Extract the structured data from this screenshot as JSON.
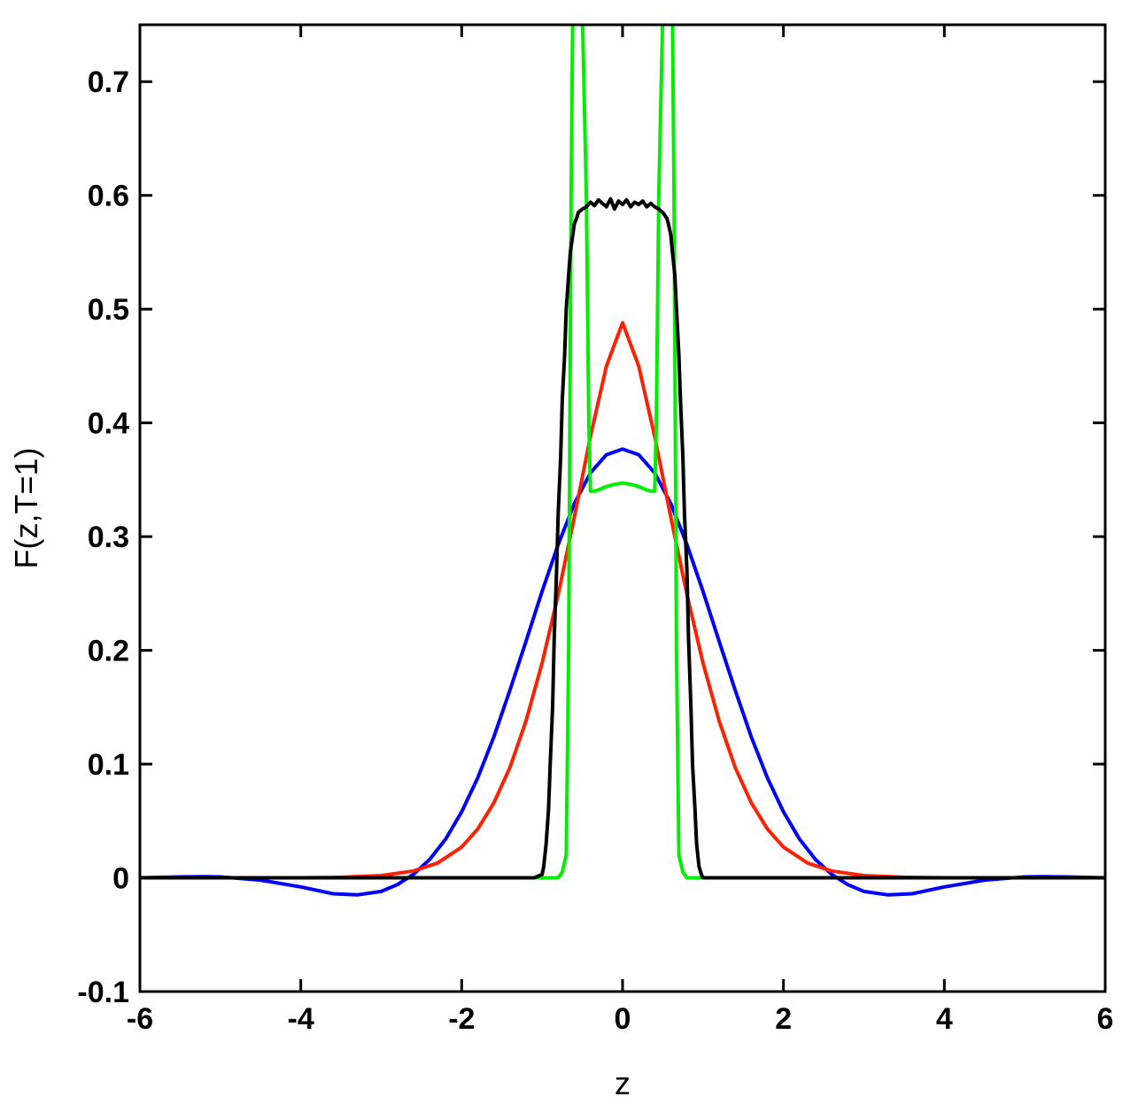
{
  "chart_data": {
    "type": "line",
    "title": "",
    "xlabel": "z",
    "ylabel": "F(z,T=1)",
    "xlim": [
      -6,
      6
    ],
    "ylim": [
      -0.1,
      0.75
    ],
    "xticks": [
      -6,
      -4,
      -2,
      0,
      2,
      4,
      6
    ],
    "xtick_labels": [
      "-6",
      "-4",
      "-2",
      "0",
      "2",
      "4",
      "6"
    ],
    "yticks": [
      -0.1,
      0,
      0.1,
      0.2,
      0.3,
      0.4,
      0.5,
      0.6,
      0.7
    ],
    "ytick_labels": [
      "-0.1",
      "0",
      "0.1",
      "0.2",
      "0.3",
      "0.4",
      "0.5",
      "0.6",
      "0.7"
    ],
    "grid": false,
    "legend": "none",
    "series": [
      {
        "color": "#0000ff",
        "x": [
          -6,
          -5.5,
          -5.2,
          -5,
          -4.5,
          -4,
          -3.6,
          -3.3,
          -3.0,
          -2.8,
          -2.6,
          -2.4,
          -2.2,
          -2.0,
          -1.8,
          -1.6,
          -1.4,
          -1.2,
          -1.0,
          -0.8,
          -0.6,
          -0.4,
          -0.2,
          0,
          0.2,
          0.4,
          0.6,
          0.8,
          1.0,
          1.2,
          1.4,
          1.6,
          1.8,
          2.0,
          2.2,
          2.4,
          2.6,
          2.8,
          3.0,
          3.3,
          3.6,
          4.0,
          4.5,
          5.0,
          5.2,
          5.5,
          6
        ],
        "y": [
          0.0,
          0.0008,
          0.001,
          0.0008,
          -0.002,
          -0.008,
          -0.014,
          -0.015,
          -0.012,
          -0.006,
          0.003,
          0.016,
          0.034,
          0.058,
          0.088,
          0.124,
          0.165,
          0.208,
          0.252,
          0.293,
          0.329,
          0.356,
          0.372,
          0.377,
          0.372,
          0.356,
          0.329,
          0.293,
          0.252,
          0.208,
          0.165,
          0.124,
          0.088,
          0.058,
          0.034,
          0.016,
          0.003,
          -0.006,
          -0.012,
          -0.015,
          -0.014,
          -0.008,
          -0.002,
          0.0008,
          0.001,
          0.0008,
          0.0
        ]
      },
      {
        "color": "#ff2000",
        "x": [
          -6,
          -4,
          -3.5,
          -3.0,
          -2.6,
          -2.3,
          -2.0,
          -1.8,
          -1.6,
          -1.4,
          -1.2,
          -1.0,
          -0.8,
          -0.6,
          -0.4,
          -0.2,
          0,
          0.2,
          0.4,
          0.6,
          0.8,
          1.0,
          1.2,
          1.4,
          1.6,
          1.8,
          2.0,
          2.3,
          2.6,
          3.0,
          3.5,
          4,
          6
        ],
        "y": [
          0.0,
          0.0,
          0.0005,
          0.002,
          0.006,
          0.013,
          0.027,
          0.043,
          0.066,
          0.097,
          0.138,
          0.189,
          0.249,
          0.317,
          0.388,
          0.45,
          0.488,
          0.45,
          0.388,
          0.317,
          0.249,
          0.189,
          0.138,
          0.097,
          0.066,
          0.043,
          0.027,
          0.013,
          0.006,
          0.002,
          0.0005,
          0.0,
          0.0
        ]
      },
      {
        "color": "#00ee00",
        "x": [
          -6,
          -0.9,
          -0.8,
          -0.75,
          -0.7,
          -0.67,
          -0.64,
          -0.62,
          -0.6,
          -0.5,
          -0.45,
          -0.42,
          -0.4,
          -0.35,
          -0.3,
          -0.2,
          -0.1,
          0,
          0.1,
          0.2,
          0.3,
          0.35,
          0.4,
          0.42,
          0.45,
          0.5,
          0.6,
          0.62,
          0.64,
          0.67,
          0.7,
          0.75,
          0.8,
          0.9,
          6
        ],
        "y": [
          0.0,
          0.0,
          0.0,
          0.005,
          0.02,
          0.2,
          0.6,
          0.76,
          0.76,
          0.76,
          0.6,
          0.4,
          0.34,
          0.34,
          0.341,
          0.344,
          0.346,
          0.347,
          0.346,
          0.344,
          0.341,
          0.34,
          0.34,
          0.4,
          0.6,
          0.76,
          0.76,
          0.76,
          0.6,
          0.2,
          0.02,
          0.005,
          0.0,
          0.0,
          0.0
        ]
      },
      {
        "color": "#000000",
        "x": [
          -6,
          -1.1,
          -1.0,
          -0.98,
          -0.95,
          -0.92,
          -0.9,
          -0.87,
          -0.85,
          -0.82,
          -0.8,
          -0.77,
          -0.75,
          -0.72,
          -0.7,
          -0.67,
          -0.65,
          -0.62,
          -0.6,
          -0.57,
          -0.55,
          -0.5,
          -0.45,
          -0.4,
          -0.35,
          -0.3,
          -0.25,
          -0.2,
          -0.15,
          -0.1,
          -0.05,
          0,
          0.05,
          0.1,
          0.15,
          0.2,
          0.25,
          0.3,
          0.35,
          0.4,
          0.45,
          0.5,
          0.55,
          0.57,
          0.6,
          0.62,
          0.65,
          0.67,
          0.7,
          0.72,
          0.75,
          0.77,
          0.8,
          0.82,
          0.85,
          0.87,
          0.9,
          0.92,
          0.95,
          0.98,
          1.0,
          1.1,
          6
        ],
        "y": [
          0.0,
          0.0,
          0.003,
          0.01,
          0.03,
          0.06,
          0.1,
          0.15,
          0.21,
          0.27,
          0.32,
          0.37,
          0.42,
          0.46,
          0.5,
          0.53,
          0.55,
          0.565,
          0.575,
          0.58,
          0.585,
          0.588,
          0.59,
          0.594,
          0.591,
          0.596,
          0.593,
          0.59,
          0.597,
          0.588,
          0.595,
          0.592,
          0.596,
          0.59,
          0.594,
          0.592,
          0.595,
          0.59,
          0.593,
          0.59,
          0.588,
          0.585,
          0.58,
          0.575,
          0.565,
          0.55,
          0.53,
          0.5,
          0.46,
          0.42,
          0.37,
          0.32,
          0.27,
          0.21,
          0.15,
          0.1,
          0.06,
          0.03,
          0.01,
          0.003,
          0.0,
          0.0,
          0.0
        ]
      }
    ]
  }
}
